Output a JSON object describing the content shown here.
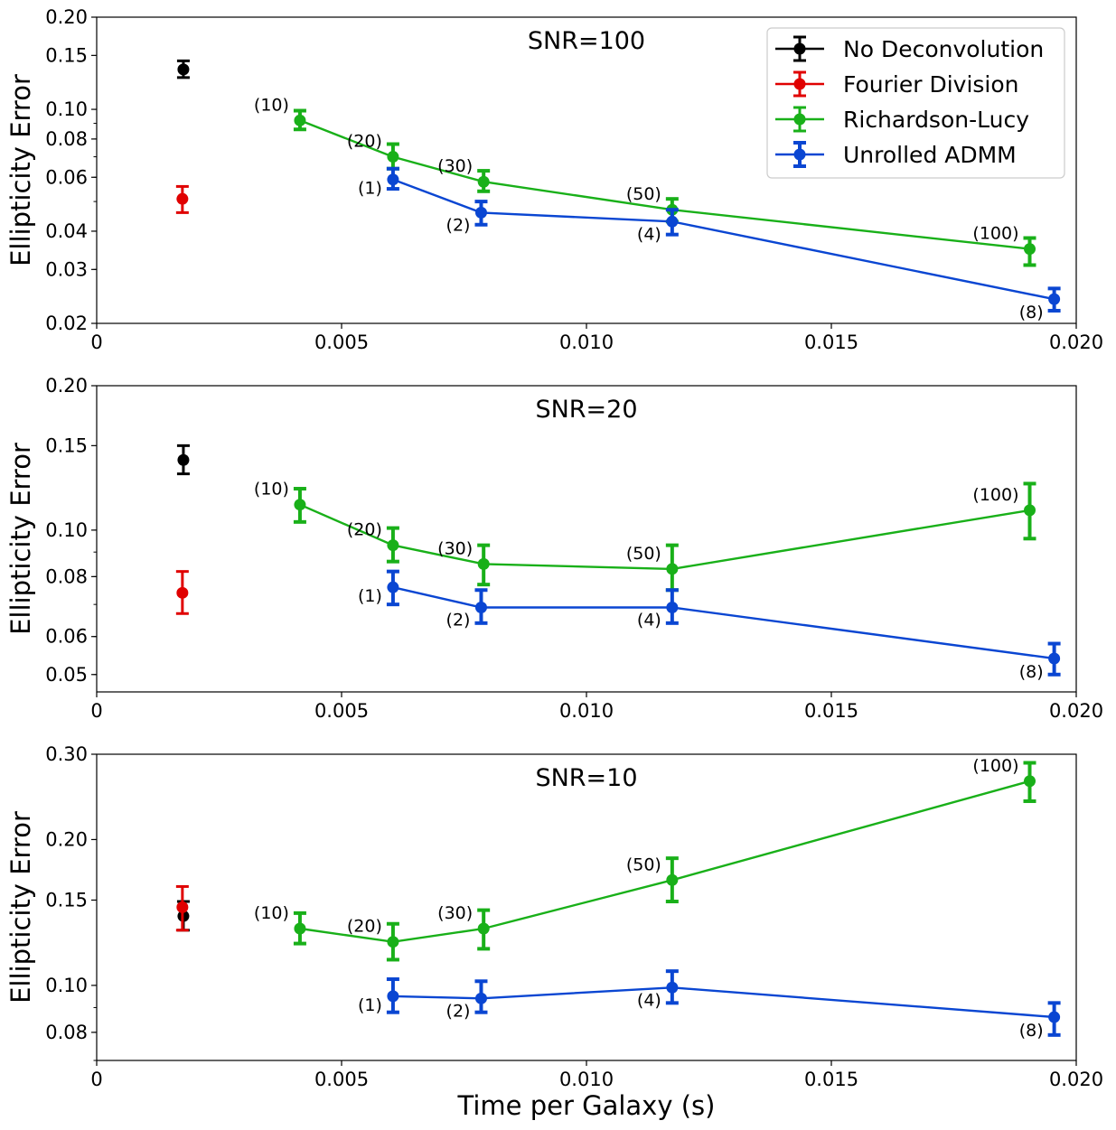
{
  "xlabel": "Time per Galaxy (s)",
  "legend": {
    "placement": "top-right",
    "entries": [
      {
        "label": "No Deconvolution",
        "color": "#000000"
      },
      {
        "label": "Fourier Division",
        "color": "#e00000"
      },
      {
        "label": "Richardson-Lucy",
        "color": "#19b019"
      },
      {
        "label": "Unrolled ADMM",
        "color": "#0a46d2"
      }
    ]
  },
  "colors": {
    "no_deconv": "#000000",
    "fourier": "#e00000",
    "rl": "#19b019",
    "admm": "#0a46d2"
  },
  "chart_data": [
    {
      "type": "scatter",
      "title": "SNR=100",
      "xlabel": "",
      "ylabel": "Ellipticity Error",
      "xscale": "linear",
      "yscale": "log",
      "xlim": [
        0,
        0.02
      ],
      "ylim": [
        0.02,
        0.2
      ],
      "xticks": [
        "0",
        "0.005",
        "0.010",
        "0.015",
        "0.020"
      ],
      "yticks": [
        {
          "v": 0.02,
          "l": "0.02"
        },
        {
          "v": 0.03,
          "l": "0.03"
        },
        {
          "v": 0.04,
          "l": "0.04"
        },
        {
          "v": 0.06,
          "l": "0.06"
        },
        {
          "v": 0.08,
          "l": "0.08"
        },
        {
          "v": 0.1,
          "l": "0.10"
        },
        {
          "v": 0.15,
          "l": "0.15"
        },
        {
          "v": 0.2,
          "l": "0.20"
        }
      ],
      "grid": false,
      "series": [
        {
          "name": "No Deconvolution",
          "color": "#000000",
          "line": false,
          "points": [
            {
              "x": 0.00177,
              "y": 0.135,
              "lo": 0.127,
              "hi": 0.144,
              "label": ""
            }
          ]
        },
        {
          "name": "Fourier Division",
          "color": "#e00000",
          "line": false,
          "points": [
            {
              "x": 0.00175,
              "y": 0.051,
              "lo": 0.046,
              "hi": 0.056,
              "label": ""
            }
          ]
        },
        {
          "name": "Richardson-Lucy",
          "color": "#19b019",
          "line": true,
          "points": [
            {
              "x": 0.00415,
              "y": 0.092,
              "lo": 0.086,
              "hi": 0.099,
              "label": "(10)"
            },
            {
              "x": 0.00605,
              "y": 0.07,
              "lo": 0.064,
              "hi": 0.077,
              "label": "(20)"
            },
            {
              "x": 0.0079,
              "y": 0.058,
              "lo": 0.054,
              "hi": 0.063,
              "label": "(30)"
            },
            {
              "x": 0.01175,
              "y": 0.047,
              "lo": 0.043,
              "hi": 0.051,
              "label": "(50)"
            },
            {
              "x": 0.01905,
              "y": 0.035,
              "lo": 0.031,
              "hi": 0.038,
              "label": "(100)"
            }
          ]
        },
        {
          "name": "Unrolled ADMM",
          "color": "#0a46d2",
          "line": true,
          "points": [
            {
              "x": 0.00605,
              "y": 0.059,
              "lo": 0.055,
              "hi": 0.064,
              "label": "(1)"
            },
            {
              "x": 0.00785,
              "y": 0.046,
              "lo": 0.042,
              "hi": 0.05,
              "label": "(2)"
            },
            {
              "x": 0.01175,
              "y": 0.043,
              "lo": 0.039,
              "hi": 0.047,
              "label": "(4)"
            },
            {
              "x": 0.01955,
              "y": 0.024,
              "lo": 0.022,
              "hi": 0.026,
              "label": "(8)"
            }
          ]
        }
      ]
    },
    {
      "type": "scatter",
      "title": "SNR=20",
      "xlabel": "",
      "ylabel": "Ellipticity Error",
      "xscale": "linear",
      "yscale": "log",
      "xlim": [
        0,
        0.02
      ],
      "ylim": [
        0.046,
        0.2
      ],
      "xticks": [
        "0",
        "0.005",
        "0.010",
        "0.015",
        "0.020"
      ],
      "yticks": [
        {
          "v": 0.05,
          "l": "0.05"
        },
        {
          "v": 0.06,
          "l": "0.06"
        },
        {
          "v": 0.08,
          "l": "0.08"
        },
        {
          "v": 0.1,
          "l": "0.10"
        },
        {
          "v": 0.15,
          "l": "0.15"
        },
        {
          "v": 0.2,
          "l": "0.20"
        }
      ],
      "grid": false,
      "series": [
        {
          "name": "No Deconvolution",
          "color": "#000000",
          "line": false,
          "points": [
            {
              "x": 0.00177,
              "y": 0.14,
              "lo": 0.131,
              "hi": 0.15,
              "label": ""
            }
          ]
        },
        {
          "name": "Fourier Division",
          "color": "#e00000",
          "line": false,
          "points": [
            {
              "x": 0.00175,
              "y": 0.074,
              "lo": 0.067,
              "hi": 0.082,
              "label": ""
            }
          ]
        },
        {
          "name": "Richardson-Lucy",
          "color": "#19b019",
          "line": true,
          "points": [
            {
              "x": 0.00415,
              "y": 0.113,
              "lo": 0.104,
              "hi": 0.122,
              "label": "(10)"
            },
            {
              "x": 0.00605,
              "y": 0.093,
              "lo": 0.086,
              "hi": 0.101,
              "label": "(20)"
            },
            {
              "x": 0.0079,
              "y": 0.085,
              "lo": 0.077,
              "hi": 0.093,
              "label": "(30)"
            },
            {
              "x": 0.01175,
              "y": 0.083,
              "lo": 0.075,
              "hi": 0.093,
              "label": "(50)"
            },
            {
              "x": 0.01905,
              "y": 0.11,
              "lo": 0.096,
              "hi": 0.125,
              "label": "(100)"
            }
          ]
        },
        {
          "name": "Unrolled ADMM",
          "color": "#0a46d2",
          "line": true,
          "points": [
            {
              "x": 0.00605,
              "y": 0.076,
              "lo": 0.07,
              "hi": 0.082,
              "label": "(1)"
            },
            {
              "x": 0.00785,
              "y": 0.069,
              "lo": 0.064,
              "hi": 0.075,
              "label": "(2)"
            },
            {
              "x": 0.01175,
              "y": 0.069,
              "lo": 0.064,
              "hi": 0.075,
              "label": "(4)"
            },
            {
              "x": 0.01955,
              "y": 0.054,
              "lo": 0.05,
              "hi": 0.058,
              "label": "(8)"
            }
          ]
        }
      ]
    },
    {
      "type": "scatter",
      "title": "SNR=10",
      "xlabel": "Time per Galaxy (s)",
      "ylabel": "Ellipticity Error",
      "xscale": "linear",
      "yscale": "log",
      "xlim": [
        0,
        0.02
      ],
      "ylim": [
        0.07,
        0.3
      ],
      "xticks": [
        "0",
        "0.005",
        "0.010",
        "0.015",
        "0.020"
      ],
      "yticks": [
        {
          "v": 0.08,
          "l": "0.08"
        },
        {
          "v": 0.1,
          "l": "0.10"
        },
        {
          "v": 0.15,
          "l": "0.15"
        },
        {
          "v": 0.2,
          "l": "0.20"
        },
        {
          "v": 0.3,
          "l": "0.30"
        }
      ],
      "grid": false,
      "series": [
        {
          "name": "No Deconvolution",
          "color": "#000000",
          "line": false,
          "points": [
            {
              "x": 0.00177,
              "y": 0.139,
              "lo": 0.13,
              "hi": 0.149,
              "label": ""
            }
          ]
        },
        {
          "name": "Fourier Division",
          "color": "#e00000",
          "line": false,
          "points": [
            {
              "x": 0.00175,
              "y": 0.145,
              "lo": 0.13,
              "hi": 0.16,
              "label": ""
            }
          ]
        },
        {
          "name": "Richardson-Lucy",
          "color": "#19b019",
          "line": true,
          "points": [
            {
              "x": 0.00415,
              "y": 0.131,
              "lo": 0.122,
              "hi": 0.141,
              "label": "(10)"
            },
            {
              "x": 0.00605,
              "y": 0.123,
              "lo": 0.113,
              "hi": 0.134,
              "label": "(20)"
            },
            {
              "x": 0.0079,
              "y": 0.131,
              "lo": 0.119,
              "hi": 0.143,
              "label": "(30)"
            },
            {
              "x": 0.01175,
              "y": 0.165,
              "lo": 0.149,
              "hi": 0.183,
              "label": "(50)"
            },
            {
              "x": 0.01905,
              "y": 0.264,
              "lo": 0.24,
              "hi": 0.288,
              "label": "(100)"
            }
          ]
        },
        {
          "name": "Unrolled ADMM",
          "color": "#0a46d2",
          "line": true,
          "points": [
            {
              "x": 0.00605,
              "y": 0.095,
              "lo": 0.088,
              "hi": 0.103,
              "label": "(1)"
            },
            {
              "x": 0.00785,
              "y": 0.094,
              "lo": 0.088,
              "hi": 0.102,
              "label": "(2)"
            },
            {
              "x": 0.01175,
              "y": 0.099,
              "lo": 0.092,
              "hi": 0.107,
              "label": "(4)"
            },
            {
              "x": 0.01955,
              "y": 0.086,
              "lo": 0.079,
              "hi": 0.092,
              "label": "(8)"
            }
          ]
        }
      ]
    }
  ]
}
